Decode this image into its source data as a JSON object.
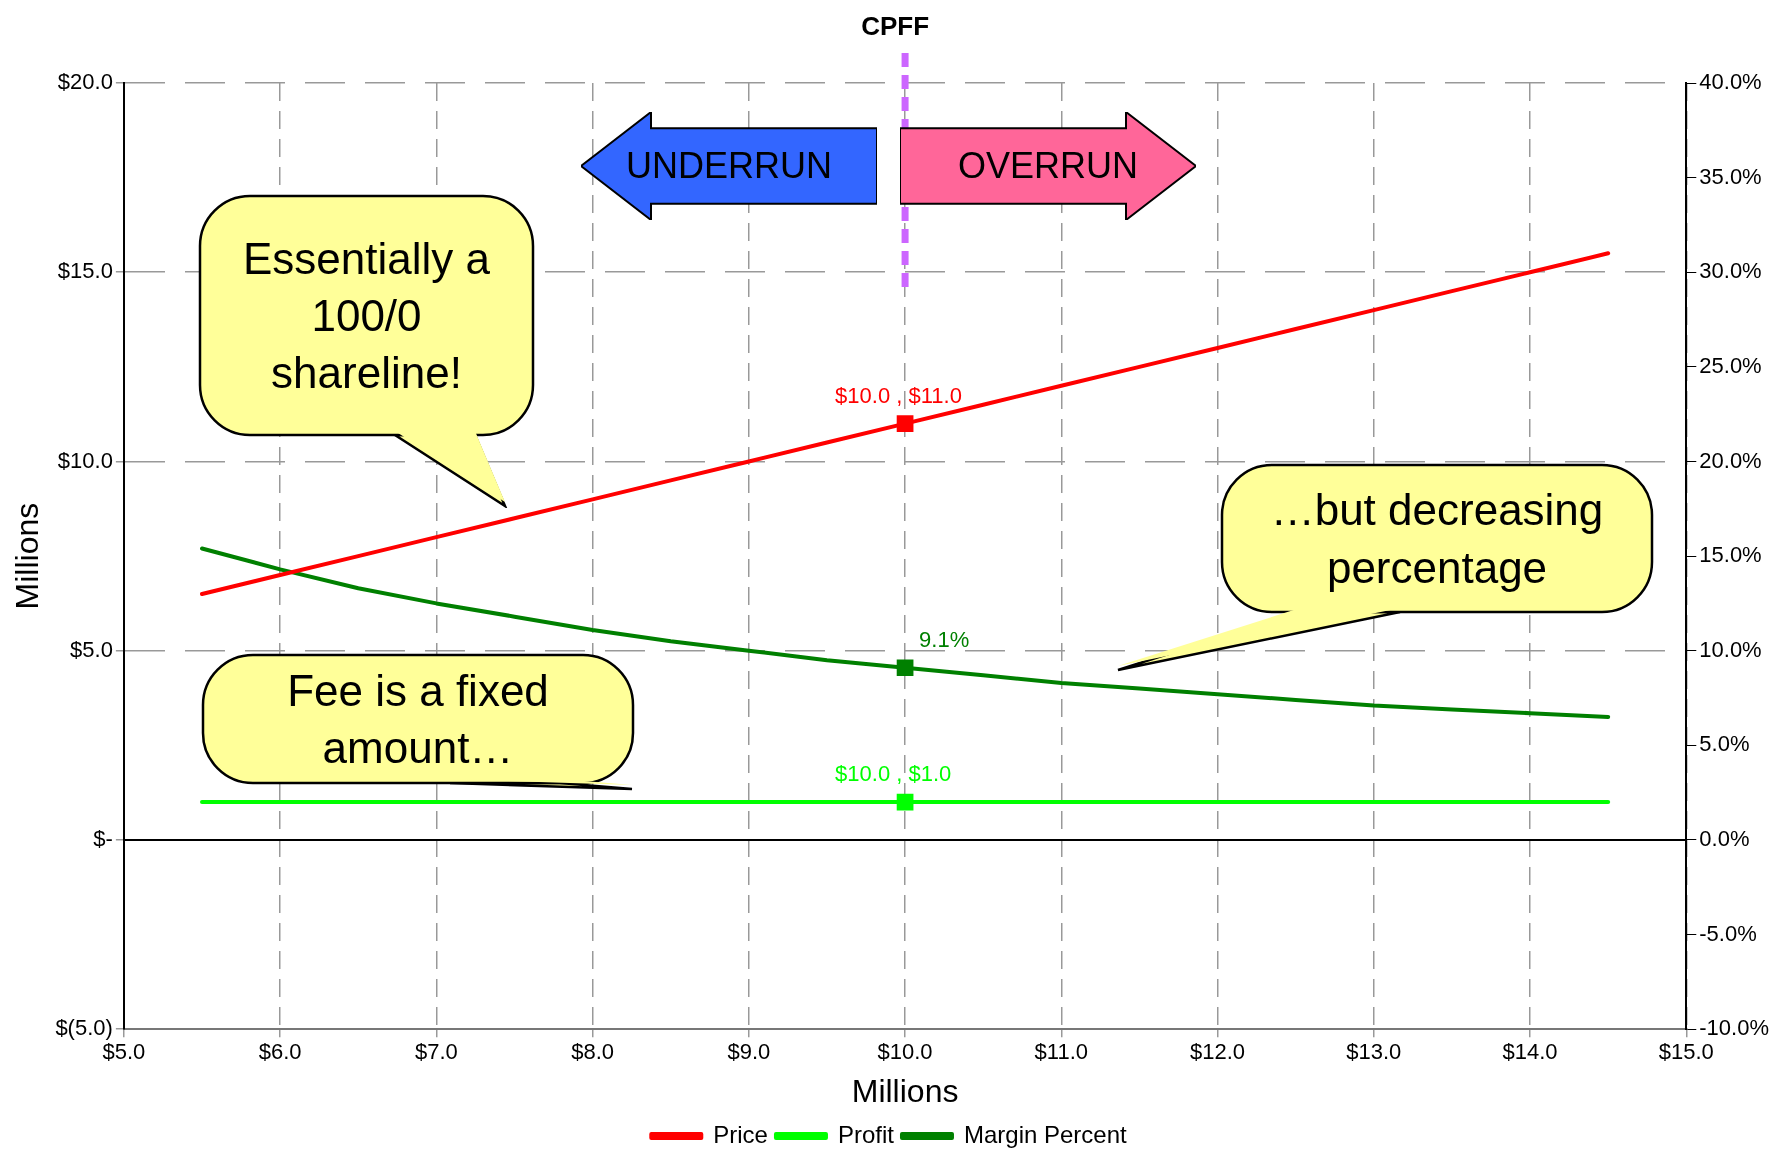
{
  "chart_data": {
    "type": "line",
    "xlabel": "Millions",
    "ylabel": "Millions",
    "x": [
      5.5,
      6,
      6.5,
      7,
      7.5,
      8,
      8.5,
      9,
      9.5,
      10,
      10.5,
      11,
      11.5,
      12,
      12.5,
      13,
      13.5,
      14,
      14.5
    ],
    "series": [
      {
        "name": "Price",
        "color": "#ff0000",
        "values": [
          6.5,
          7,
          7.5,
          8,
          8.5,
          9,
          9.5,
          10,
          10.5,
          11,
          11.5,
          12,
          12.5,
          13,
          13.5,
          14,
          14.5,
          15,
          15.5
        ],
        "value_labels": [
          null,
          null,
          null,
          null,
          null,
          null,
          null,
          null,
          null,
          "$10.0 , $11.0",
          null,
          null,
          null,
          null,
          null,
          null,
          null,
          null,
          null
        ]
      },
      {
        "name": "Profit",
        "color": "#00ff00",
        "values": [
          1,
          1,
          1,
          1,
          1,
          1,
          1,
          1,
          1,
          1,
          1,
          1,
          1,
          1,
          1,
          1,
          1,
          1,
          1
        ],
        "value_labels": [
          null,
          null,
          null,
          null,
          null,
          null,
          null,
          null,
          null,
          "$10.0 , $1.0",
          null,
          null,
          null,
          null,
          null,
          null,
          null,
          null,
          null
        ]
      },
      {
        "name": "Margin Percent",
        "color": "#008000",
        "axis": "y2",
        "values": [
          15.4,
          14.3,
          13.3,
          12.5,
          11.8,
          11.1,
          10.5,
          10.0,
          9.5,
          9.1,
          8.7,
          8.3,
          8.0,
          7.7,
          7.4,
          7.1,
          6.9,
          6.7,
          6.5
        ],
        "value_labels": [
          null,
          null,
          null,
          null,
          null,
          null,
          null,
          null,
          null,
          "9.1%",
          null,
          null,
          null,
          null,
          null,
          null,
          null,
          null,
          null
        ]
      }
    ],
    "xlim": [
      5,
      15
    ],
    "xticks": [
      {
        "value": 5,
        "label": "$5.0"
      },
      {
        "value": 6,
        "label": "$6.0"
      },
      {
        "value": 7,
        "label": "$7.0"
      },
      {
        "value": 8,
        "label": "$8.0"
      },
      {
        "value": 9,
        "label": "$9.0"
      },
      {
        "value": 10,
        "label": "$10.0"
      },
      {
        "value": 11,
        "label": "$11.0"
      },
      {
        "value": 12,
        "label": "$12.0"
      },
      {
        "value": 13,
        "label": "$13.0"
      },
      {
        "value": 14,
        "label": "$14.0"
      },
      {
        "value": 15,
        "label": "$15.0"
      }
    ],
    "ylim": [
      -5,
      20
    ],
    "yticks": [
      {
        "value": -5,
        "label": "$(5.0)"
      },
      {
        "value": 0,
        "label": "$-"
      },
      {
        "value": 5,
        "label": "$5.0"
      },
      {
        "value": 10,
        "label": "$10.0"
      },
      {
        "value": 15,
        "label": "$15.0"
      },
      {
        "value": 20,
        "label": "$20.0"
      }
    ],
    "y2lim": [
      -10,
      40
    ],
    "y2ticks": [
      {
        "value": -10,
        "label": "-10.0%"
      },
      {
        "value": -5,
        "label": "-5.0%"
      },
      {
        "value": 0,
        "label": "0.0%"
      },
      {
        "value": 5,
        "label": "5.0%"
      },
      {
        "value": 10,
        "label": "10.0%"
      },
      {
        "value": 15,
        "label": "15.0%"
      },
      {
        "value": 20,
        "label": "20.0%"
      },
      {
        "value": 25,
        "label": "25.0%"
      },
      {
        "value": 30,
        "label": "30.0%"
      },
      {
        "value": 35,
        "label": "35.0%"
      },
      {
        "value": 40,
        "label": "40.0%"
      }
    ],
    "ref_lines": [
      {
        "axis": "x",
        "value": 10,
        "label": "CPFF",
        "color": "#cc66ff",
        "line_style": "dashed"
      },
      {
        "axis": "y",
        "value": 0,
        "color": "#000000",
        "line_style": "solid"
      }
    ],
    "annotations": [
      "UNDERRUN",
      "OVERRUN",
      "Essentially a 100/0 shareline!",
      "Fee is a fixed amount…",
      "…but decreasing percentage"
    ],
    "grid": true,
    "legend": "bottom",
    "marker": "none",
    "line_style": "solid"
  }
}
